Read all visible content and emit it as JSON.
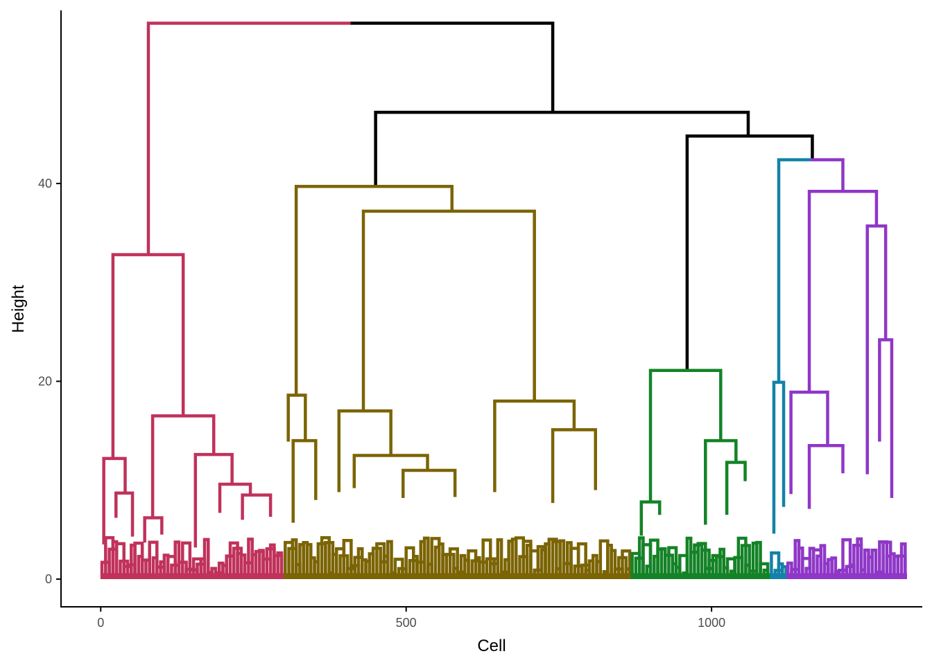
{
  "chart_data": {
    "type": "dendrogram",
    "xlabel": "Cell",
    "ylabel": "Height",
    "xlim": [
      -65,
      1345
    ],
    "ylim": [
      -2.8,
      57.5
    ],
    "x_ticks": [
      0,
      500,
      1000
    ],
    "x_tick_labels": [
      "0",
      "500",
      "1000"
    ],
    "y_ticks": [
      0,
      20,
      40
    ],
    "y_tick_labels": [
      "0",
      "20",
      "40"
    ],
    "grid": false,
    "legend": "none",
    "colors": {
      "root": "#000000",
      "cluster_1": "#c0325b",
      "cluster_2": "#7b6404",
      "cluster_3": "#148327",
      "cluster_4": "#1382a7",
      "cluster_5": "#8f37c7"
    },
    "merges": [
      {
        "x1": 78,
        "h1": 32.8,
        "x2": 740,
        "h2": 47.2,
        "h": 56.2,
        "color": "mixed",
        "left_color": "cluster_1",
        "right_color": "root"
      },
      {
        "x1": 450,
        "h1": 39.7,
        "x2": 1060,
        "h2": 44.8,
        "h": 47.2,
        "color": "root"
      },
      {
        "x1": 960,
        "h1": 21.1,
        "x2": 1165,
        "h2": 42.4,
        "h": 44.8,
        "color": "root"
      },
      {
        "x1": 1110,
        "h1": 19.9,
        "x2": 1215,
        "h2": 39.2,
        "h": 42.4,
        "color": "mixed",
        "left_color": "cluster_4",
        "right_color": "cluster_5"
      },
      {
        "x1": 20,
        "h1": 12.2,
        "x2": 135,
        "h2": 16.5,
        "h": 32.8,
        "color": "cluster_1"
      },
      {
        "x1": 5,
        "h1": 3.5,
        "x2": 40,
        "h2": 8.7,
        "h": 12.2,
        "color": "cluster_1"
      },
      {
        "x1": 25,
        "h1": 6.2,
        "x2": 52,
        "h2": 4.3,
        "h": 8.7,
        "color": "cluster_1"
      },
      {
        "x1": 85,
        "h1": 6.2,
        "x2": 185,
        "h2": 12.6,
        "h": 16.5,
        "color": "cluster_1"
      },
      {
        "x1": 72,
        "h1": 3.7,
        "x2": 100,
        "h2": 4.5,
        "h": 6.2,
        "color": "cluster_1"
      },
      {
        "x1": 155,
        "h1": 3.2,
        "x2": 215,
        "h2": 9.6,
        "h": 12.6,
        "color": "cluster_1"
      },
      {
        "x1": 195,
        "h1": 6.7,
        "x2": 245,
        "h2": 8.5,
        "h": 9.6,
        "color": "cluster_1"
      },
      {
        "x1": 232,
        "h1": 6.0,
        "x2": 278,
        "h2": 6.3,
        "h": 8.5,
        "color": "cluster_1"
      },
      {
        "x1": 320,
        "h1": 18.6,
        "x2": 575,
        "h2": 37.2,
        "h": 39.7,
        "color": "cluster_2"
      },
      {
        "x1": 307,
        "h1": 13.9,
        "x2": 335,
        "h2": 14.0,
        "h": 18.6,
        "color": "cluster_2"
      },
      {
        "x1": 315,
        "h1": 5.7,
        "x2": 352,
        "h2": 8.0,
        "h": 14.0,
        "color": "cluster_2"
      },
      {
        "x1": 430,
        "h1": 17.0,
        "x2": 710,
        "h2": 18.0,
        "h": 37.2,
        "color": "cluster_2"
      },
      {
        "x1": 390,
        "h1": 8.8,
        "x2": 475,
        "h2": 12.5,
        "h": 17.0,
        "color": "cluster_2"
      },
      {
        "x1": 415,
        "h1": 9.2,
        "x2": 535,
        "h2": 11.0,
        "h": 12.5,
        "color": "cluster_2"
      },
      {
        "x1": 495,
        "h1": 8.2,
        "x2": 580,
        "h2": 8.3,
        "h": 11.0,
        "color": "cluster_2"
      },
      {
        "x1": 645,
        "h1": 8.8,
        "x2": 775,
        "h2": 15.1,
        "h": 18.0,
        "color": "cluster_2"
      },
      {
        "x1": 740,
        "h1": 7.7,
        "x2": 810,
        "h2": 9.0,
        "h": 15.1,
        "color": "cluster_2"
      },
      {
        "x1": 900,
        "h1": 7.8,
        "x2": 1015,
        "h2": 14.0,
        "h": 21.1,
        "color": "cluster_3"
      },
      {
        "x1": 885,
        "h1": 4.4,
        "x2": 915,
        "h2": 6.5,
        "h": 7.8,
        "color": "cluster_3"
      },
      {
        "x1": 990,
        "h1": 5.5,
        "x2": 1040,
        "h2": 11.8,
        "h": 14.0,
        "color": "cluster_3"
      },
      {
        "x1": 1025,
        "h1": 6.5,
        "x2": 1055,
        "h2": 9.9,
        "h": 11.8,
        "color": "cluster_3"
      },
      {
        "x1": 1102,
        "h1": 4.6,
        "x2": 1118,
        "h2": 7.3,
        "h": 19.9,
        "color": "cluster_4"
      },
      {
        "x1": 1160,
        "h1": 18.9,
        "x2": 1270,
        "h2": 35.7,
        "h": 39.2,
        "color": "cluster_5"
      },
      {
        "x1": 1130,
        "h1": 8.6,
        "x2": 1190,
        "h2": 13.5,
        "h": 18.9,
        "color": "cluster_5"
      },
      {
        "x1": 1160,
        "h1": 7.1,
        "x2": 1215,
        "h2": 10.7,
        "h": 13.5,
        "color": "cluster_5"
      },
      {
        "x1": 1255,
        "h1": 10.6,
        "x2": 1285,
        "h2": 24.2,
        "h": 35.7,
        "color": "cluster_5"
      },
      {
        "x1": 1275,
        "h1": 13.9,
        "x2": 1295,
        "h2": 8.2,
        "h": 24.2,
        "color": "cluster_5"
      }
    ],
    "leaf_clusters": [
      {
        "from": 2,
        "to": 302,
        "color": "cluster_1"
      },
      {
        "from": 302,
        "to": 870,
        "color": "cluster_2"
      },
      {
        "from": 870,
        "to": 1098,
        "color": "cluster_3"
      },
      {
        "from": 1098,
        "to": 1125,
        "color": "cluster_4"
      },
      {
        "from": 1125,
        "to": 1320,
        "color": "cluster_5"
      }
    ]
  }
}
